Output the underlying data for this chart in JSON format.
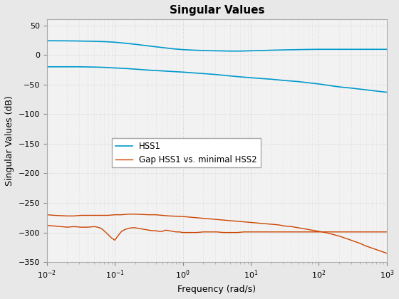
{
  "title": "Singular Values",
  "xlabel": "Frequency (rad/s)",
  "ylabel": "Singular Values (dB)",
  "xlim": [
    0.01,
    1000
  ],
  "ylim": [
    -350,
    60
  ],
  "yticks": [
    50,
    0,
    -50,
    -100,
    -150,
    -200,
    -250,
    -300,
    -350
  ],
  "legend_labels": [
    "HSS1",
    "Gap HSS1 vs. minimal HSS2"
  ],
  "blue_color": "#0099cc",
  "orange_color": "#cc4400",
  "bg_color": "#e8e8e8",
  "plot_bg_color": "#f5f5f5",
  "blue_line1": {
    "freq": [
      0.01,
      0.02,
      0.03,
      0.05,
      0.07,
      0.1,
      0.15,
      0.2,
      0.3,
      0.5,
      0.7,
      1.0,
      1.5,
      2.0,
      3.0,
      5.0,
      7.0,
      10.0,
      15.0,
      20.0,
      30.0,
      50.0,
      70.0,
      100.0,
      150.0,
      200.0,
      300.0,
      500.0,
      700.0,
      1000.0
    ],
    "vals": [
      24,
      23.8,
      23.5,
      23,
      22.5,
      21.5,
      19.5,
      18,
      15.5,
      12.5,
      10.5,
      9,
      8,
      7.5,
      7,
      6.5,
      6.5,
      7,
      7.5,
      8,
      8.5,
      9,
      9.3,
      9.5,
      9.5,
      9.5,
      9.5,
      9.5,
      9.5,
      9.5
    ]
  },
  "blue_line2": {
    "freq": [
      0.01,
      0.02,
      0.03,
      0.05,
      0.07,
      0.1,
      0.15,
      0.2,
      0.3,
      0.5,
      0.7,
      1.0,
      1.5,
      2.0,
      3.0,
      5.0,
      7.0,
      10.0,
      15.0,
      20.0,
      30.0,
      50.0,
      70.0,
      100.0,
      150.0,
      200.0,
      300.0,
      500.0,
      700.0,
      1000.0
    ],
    "vals": [
      -20,
      -20,
      -20,
      -20.5,
      -21,
      -22,
      -23,
      -24,
      -25.5,
      -27,
      -28,
      -29,
      -30.5,
      -31.5,
      -33,
      -35.5,
      -37,
      -38.5,
      -40,
      -41,
      -43,
      -45,
      -47,
      -49,
      -52,
      -54,
      -56,
      -59,
      -61,
      -63
    ]
  },
  "orange_line1_freq": [
    0.01,
    0.013,
    0.016,
    0.02,
    0.025,
    0.032,
    0.04,
    0.05,
    0.063,
    0.079,
    0.1,
    0.126,
    0.158,
    0.2,
    0.251,
    0.316,
    0.398,
    0.5,
    0.631,
    0.794,
    1.0,
    1.259,
    1.585,
    1.995,
    2.512,
    3.162,
    3.981,
    5.012,
    6.31,
    7.943,
    10.0,
    12.59,
    15.85,
    19.95,
    25.12,
    31.62,
    39.81,
    50.12,
    63.1,
    79.43,
    100.0,
    125.9,
    158.5,
    199.5,
    251.2,
    316.2,
    398.1,
    501.2,
    631.0,
    794.3,
    1000.0
  ],
  "orange_line1_vals": [
    -270,
    -271,
    -271.5,
    -272,
    -272,
    -271,
    -271,
    -271,
    -271,
    -271,
    -270,
    -270,
    -269,
    -269,
    -269.5,
    -270,
    -270,
    -271,
    -272,
    -272.5,
    -273,
    -274,
    -275,
    -276,
    -277,
    -278,
    -279,
    -280,
    -281,
    -282,
    -283,
    -284,
    -285,
    -286,
    -287,
    -289,
    -290,
    -292,
    -294,
    -296,
    -298,
    -300,
    -303,
    -306,
    -310,
    -314,
    -318,
    -323,
    -327,
    -331,
    -335
  ],
  "orange_line2_freq": [
    0.01,
    0.013,
    0.016,
    0.02,
    0.025,
    0.032,
    0.04,
    0.05,
    0.056,
    0.063,
    0.071,
    0.079,
    0.089,
    0.1,
    0.112,
    0.126,
    0.141,
    0.158,
    0.178,
    0.2,
    0.224,
    0.251,
    0.282,
    0.316,
    0.355,
    0.398,
    0.447,
    0.5,
    0.562,
    0.631,
    0.708,
    0.794,
    0.891,
    1.0,
    1.259,
    1.585,
    1.995,
    2.512,
    3.162,
    3.981,
    5.012,
    6.31,
    7.943,
    10.0,
    12.59,
    15.85,
    19.95,
    25.12,
    31.62,
    39.81,
    50.12,
    63.1,
    79.43,
    100.0,
    125.9,
    158.5,
    199.5,
    251.2,
    316.2,
    398.1,
    501.2,
    631.0,
    794.3,
    1000.0
  ],
  "orange_line2_vals": [
    -288,
    -289,
    -290,
    -291,
    -290,
    -291,
    -291,
    -290,
    -291,
    -293,
    -298,
    -303,
    -309,
    -313,
    -305,
    -298,
    -295,
    -293,
    -292,
    -292,
    -293,
    -294,
    -295,
    -296,
    -297,
    -297,
    -298,
    -298,
    -296,
    -297,
    -298,
    -299,
    -299,
    -300,
    -300,
    -300,
    -299,
    -299,
    -299,
    -300,
    -300,
    -300,
    -299,
    -299,
    -299,
    -299,
    -299,
    -299,
    -299,
    -299,
    -299,
    -299,
    -299,
    -299,
    -299,
    -299,
    -299,
    -299,
    -299,
    -299,
    -299,
    -299,
    -299,
    -299
  ]
}
